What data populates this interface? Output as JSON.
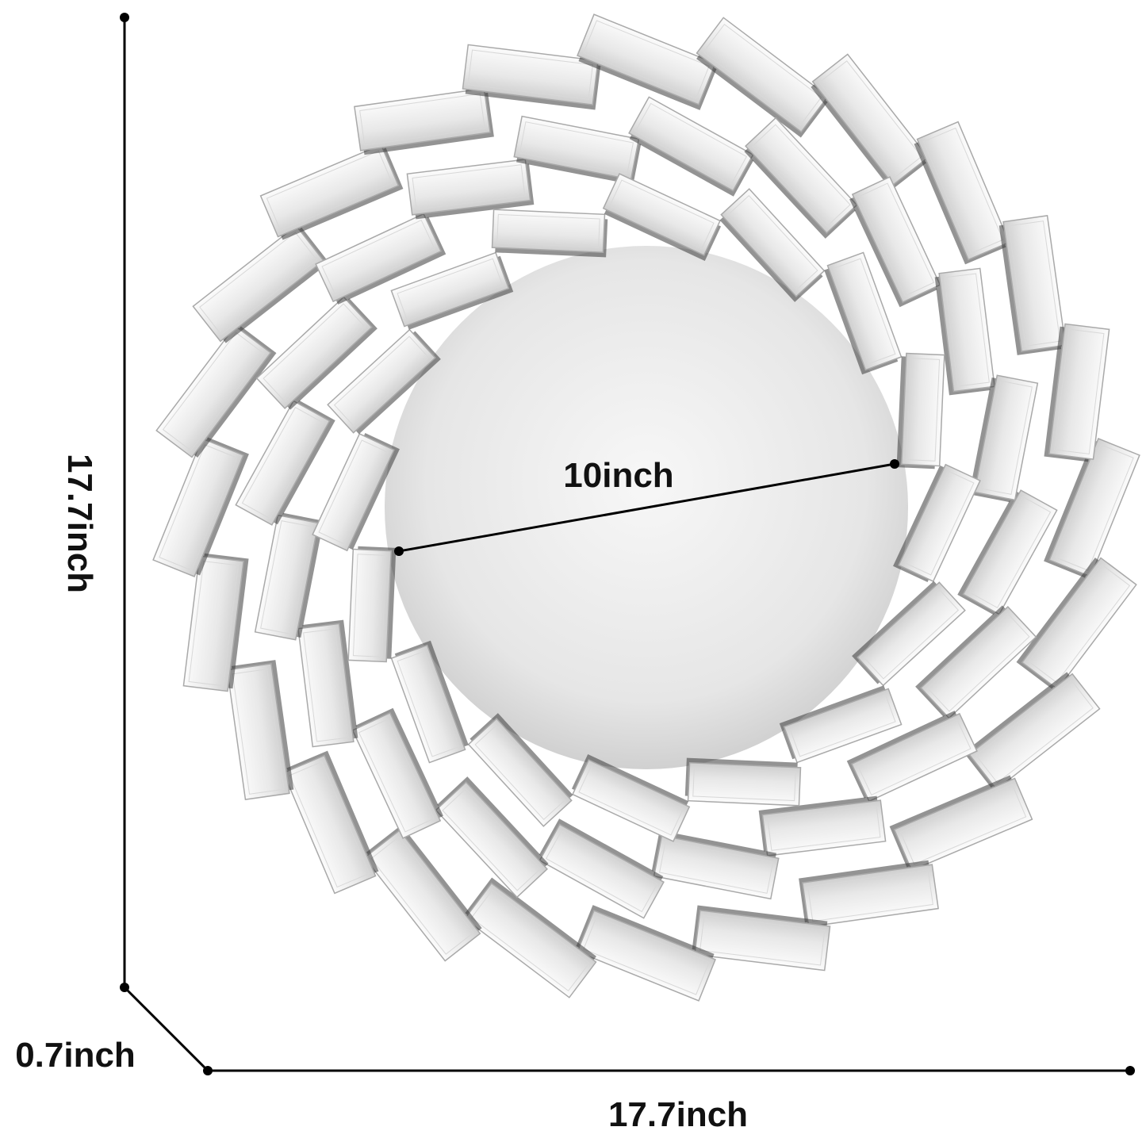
{
  "dimensions": {
    "height_label": "17.7inch",
    "width_label": "17.7inch",
    "depth_label": "0.7inch",
    "inner_diameter_label": "10inch"
  },
  "colors": {
    "line": "#000000",
    "mirror_light": "#f4f4f4",
    "mirror_dark": "#c9c9c9",
    "tile_edge": "#a9a9a9"
  }
}
